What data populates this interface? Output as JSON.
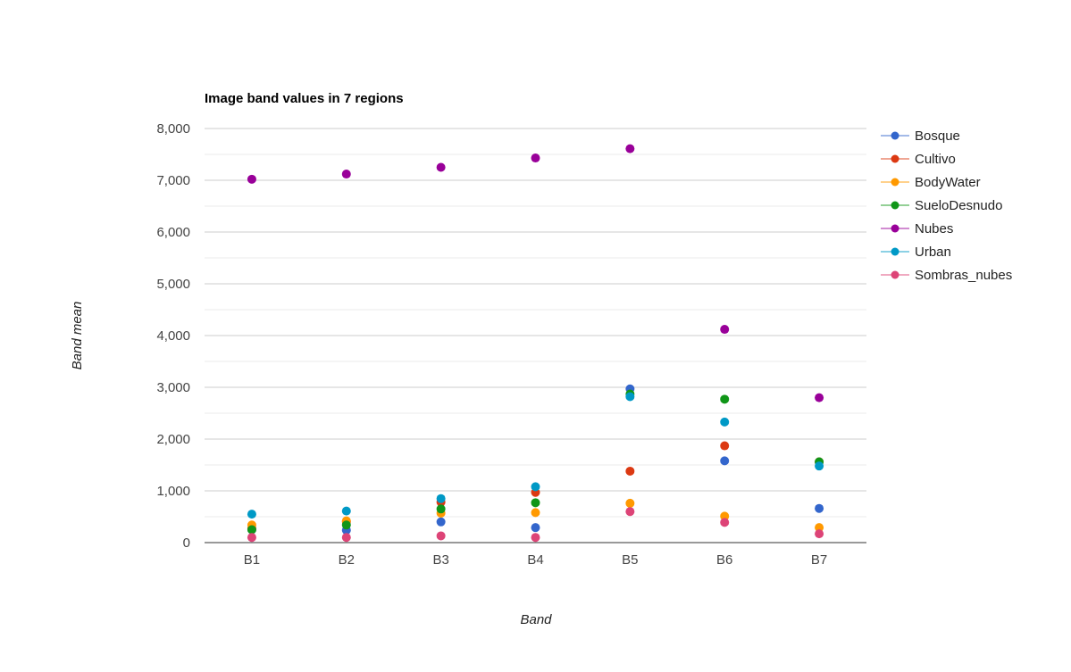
{
  "chart_data": {
    "type": "scatter",
    "title": "Image band values in 7 regions",
    "xlabel": "Band",
    "ylabel": "Band mean",
    "categories": [
      "B1",
      "B2",
      "B3",
      "B4",
      "B5",
      "B6",
      "B7"
    ],
    "ylim": [
      0,
      8000
    ],
    "y_ticks": [
      "0",
      "1,000",
      "2,000",
      "3,000",
      "4,000",
      "5,000",
      "6,000",
      "7,000",
      "8,000"
    ],
    "grid": true,
    "legend_position": "right",
    "series": [
      {
        "name": "Bosque",
        "color": "#3366cc",
        "values": [
          250,
          240,
          400,
          290,
          2970,
          1580,
          660
        ]
      },
      {
        "name": "Cultivo",
        "color": "#dc3912",
        "values": [
          270,
          400,
          780,
          970,
          1380,
          1870,
          1560
        ]
      },
      {
        "name": "BodyWater",
        "color": "#ff9900",
        "values": [
          340,
          420,
          570,
          580,
          760,
          510,
          290
        ]
      },
      {
        "name": "SueloDesnudo",
        "color": "#109618",
        "values": [
          250,
          340,
          650,
          770,
          2870,
          2770,
          1560
        ]
      },
      {
        "name": "Nubes",
        "color": "#990099",
        "values": [
          7020,
          7120,
          7250,
          7430,
          7610,
          4120,
          2800
        ]
      },
      {
        "name": "Urban",
        "color": "#0099c6",
        "values": [
          550,
          610,
          850,
          1080,
          2820,
          2330,
          1480
        ]
      },
      {
        "name": "Sombras_nubes",
        "color": "#dd4477",
        "values": [
          100,
          100,
          130,
          100,
          600,
          390,
          170
        ]
      }
    ]
  }
}
